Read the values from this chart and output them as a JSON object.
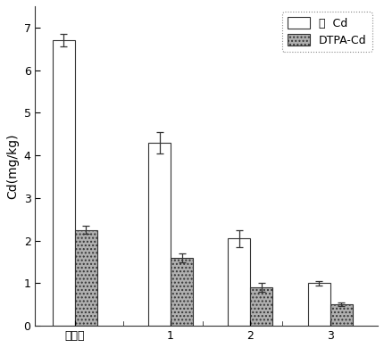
{
  "categories": [
    "未淤洗",
    "1",
    "2",
    "3"
  ],
  "total_cd": [
    6.7,
    4.3,
    2.05,
    1.0
  ],
  "total_cd_err": [
    0.15,
    0.25,
    0.2,
    0.05
  ],
  "dtpa_cd": [
    2.25,
    1.6,
    0.9,
    0.5
  ],
  "dtpa_cd_err": [
    0.1,
    0.1,
    0.1,
    0.04
  ],
  "ylabel": "Cd(mg/kg)",
  "ylim": [
    0,
    7.5
  ],
  "yticks": [
    0,
    1,
    2,
    3,
    4,
    5,
    6,
    7
  ],
  "bar_width": 0.28,
  "x_positions": [
    0.5,
    1.7,
    2.7,
    3.7
  ],
  "legend_labels": [
    "总  Cd",
    "DTPA-Cd"
  ],
  "total_cd_color": "#ffffff",
  "dtpa_cd_color": "#b0b0b0",
  "edge_color": "#333333",
  "hatch_dtpa": "....",
  "background_color": "#ffffff",
  "figure_bg": "#ffffff",
  "xlim": [
    0.0,
    4.3
  ]
}
